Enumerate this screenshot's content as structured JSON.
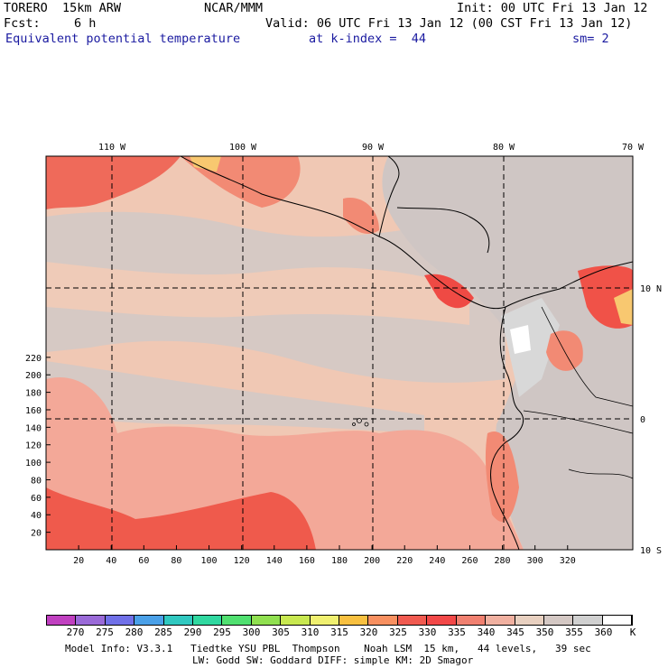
{
  "header": {
    "model": "TORERO  15km ARW",
    "org": "NCAR/MMM",
    "init": "Init: 00 UTC Fri 13 Jan 12",
    "fcst_label": "Fcst:",
    "fcst_value": "6 h",
    "valid": "Valid: 06 UTC Fri 13 Jan 12 (00 CST Fri 13 Jan 12)",
    "field": "Equivalent potential temperature",
    "level": "at k-index =  44",
    "smoothing": "sm= 2"
  },
  "map": {
    "x_ticks": [
      "20",
      "40",
      "60",
      "80",
      "100",
      "120",
      "140",
      "160",
      "180",
      "200",
      "220",
      "240",
      "260",
      "280",
      "300",
      "320"
    ],
    "y_ticks": [
      "20",
      "40",
      "60",
      "80",
      "100",
      "120",
      "140",
      "160",
      "180",
      "200",
      "220"
    ],
    "lon_labels": [
      "110 W",
      "100 W",
      "90 W",
      "80 W",
      "70 W"
    ],
    "lat_labels": [
      "10 N",
      "0",
      "10 S"
    ]
  },
  "colorbar": {
    "unit": "K",
    "labels": [
      "270",
      "275",
      "280",
      "285",
      "290",
      "295",
      "300",
      "305",
      "310",
      "315",
      "320",
      "325",
      "330",
      "335",
      "340",
      "345",
      "350",
      "355",
      "360"
    ],
    "colors": [
      "#c040c0",
      "#9a6ad8",
      "#7070e8",
      "#4aa0e8",
      "#30c8c0",
      "#30d8a0",
      "#50e070",
      "#90e050",
      "#c8e850",
      "#f0f070",
      "#f8c040",
      "#f89060",
      "#f05a50",
      "#f24848",
      "#f08070",
      "#f0b0a0",
      "#e8d0c0",
      "#d4c8c4",
      "#d0d0d0",
      "#ffffff"
    ]
  },
  "footer": {
    "line1": "Model Info: V3.3.1   Tiedtke YSU PBL  Thompson    Noah LSM  15 km,   44 levels,   39 sec",
    "line2": "LW: Godd SW: Goddard DIFF: simple KM: 2D Smagor"
  }
}
